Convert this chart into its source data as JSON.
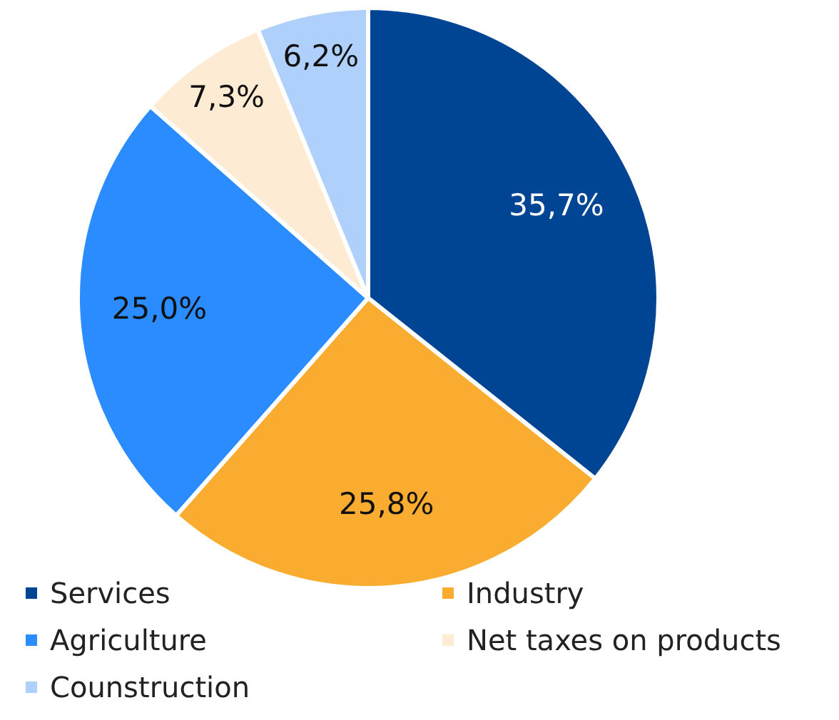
{
  "chart_data": {
    "type": "pie",
    "categories": [
      "Services",
      "Industry",
      "Agriculture",
      "Net taxes on products",
      "Counstruction"
    ],
    "values": [
      35.7,
      25.8,
      25.0,
      7.3,
      6.2
    ],
    "colors": [
      "#004494",
      "#f9ac2f",
      "#2a8cff",
      "#fdebd3",
      "#aed0fb"
    ],
    "value_labels": [
      "35,7%",
      "25,8%",
      "25,0%",
      "7,3%",
      "6,2%"
    ],
    "legend": "bottom"
  }
}
